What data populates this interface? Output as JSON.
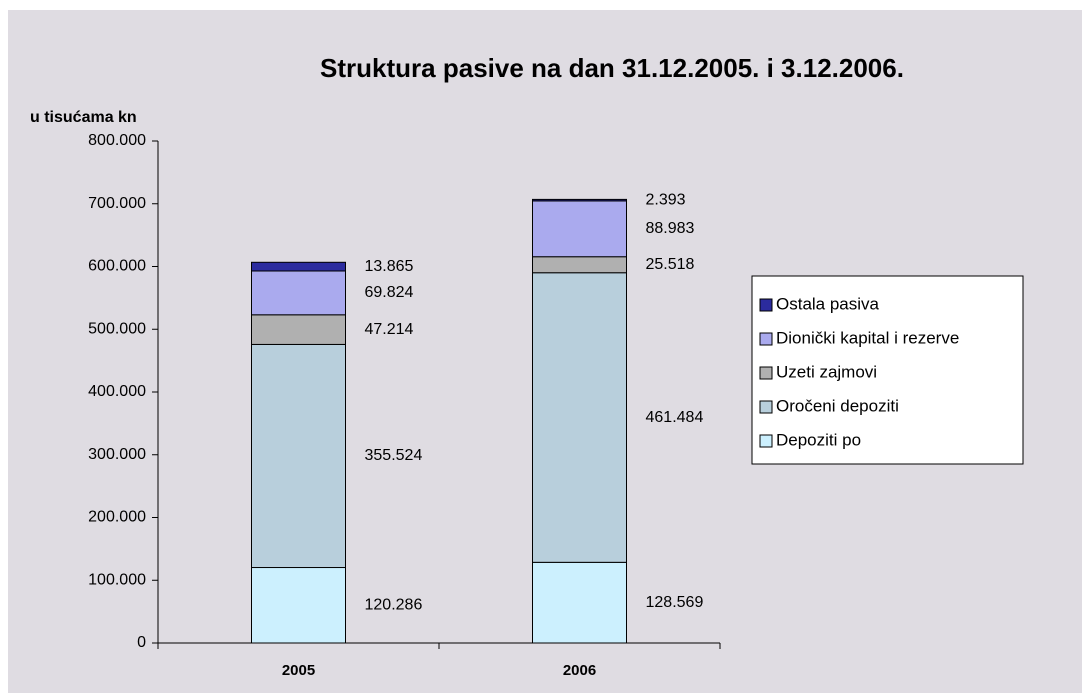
{
  "chart_data": {
    "type": "stacked_bar",
    "title": "Struktura pasive na dan 31.12.2005. i 3.12.2006.",
    "y_axis_label": "u tisućama kn",
    "categories": [
      "2005",
      "2006"
    ],
    "series": [
      {
        "name": "Depoziti po",
        "color": "#ccf0fe",
        "values": [
          120286,
          128569
        ],
        "value_labels": [
          "120.286",
          "128.569"
        ]
      },
      {
        "name": "Oročeni depoziti",
        "color": "#b8cfdc",
        "values": [
          355524,
          461484
        ],
        "value_labels": [
          "355.524",
          "461.484"
        ]
      },
      {
        "name": "Uzeti zajmovi",
        "color": "#b0b0b0",
        "values": [
          47214,
          25518
        ],
        "value_labels": [
          "47.214",
          "25.518"
        ]
      },
      {
        "name": "Dionički kapital i rezerve",
        "color": "#aaaaee",
        "values": [
          69824,
          88983
        ],
        "value_labels": [
          "69.824",
          "88.983"
        ]
      },
      {
        "name": "Ostala pasiva",
        "color": "#2b2b9e",
        "values": [
          13865,
          2393
        ],
        "value_labels": [
          "13.865",
          "2.393"
        ]
      }
    ],
    "ylim": [
      0,
      800000
    ],
    "yticks": [
      0,
      {
        "value": 100000,
        "label": "100.000"
      },
      {
        "value": 200000,
        "label": "200.000"
      },
      {
        "value": 300000,
        "label": "300.000"
      },
      {
        "value": 400000,
        "label": "400.000"
      },
      {
        "value": 500000,
        "label": "500.000"
      },
      {
        "value": 600000,
        "label": "600.000"
      },
      {
        "value": 700000,
        "label": "700.000"
      },
      {
        "value": 800000,
        "label": "800.000"
      }
    ],
    "grid": false,
    "legend": "right"
  }
}
